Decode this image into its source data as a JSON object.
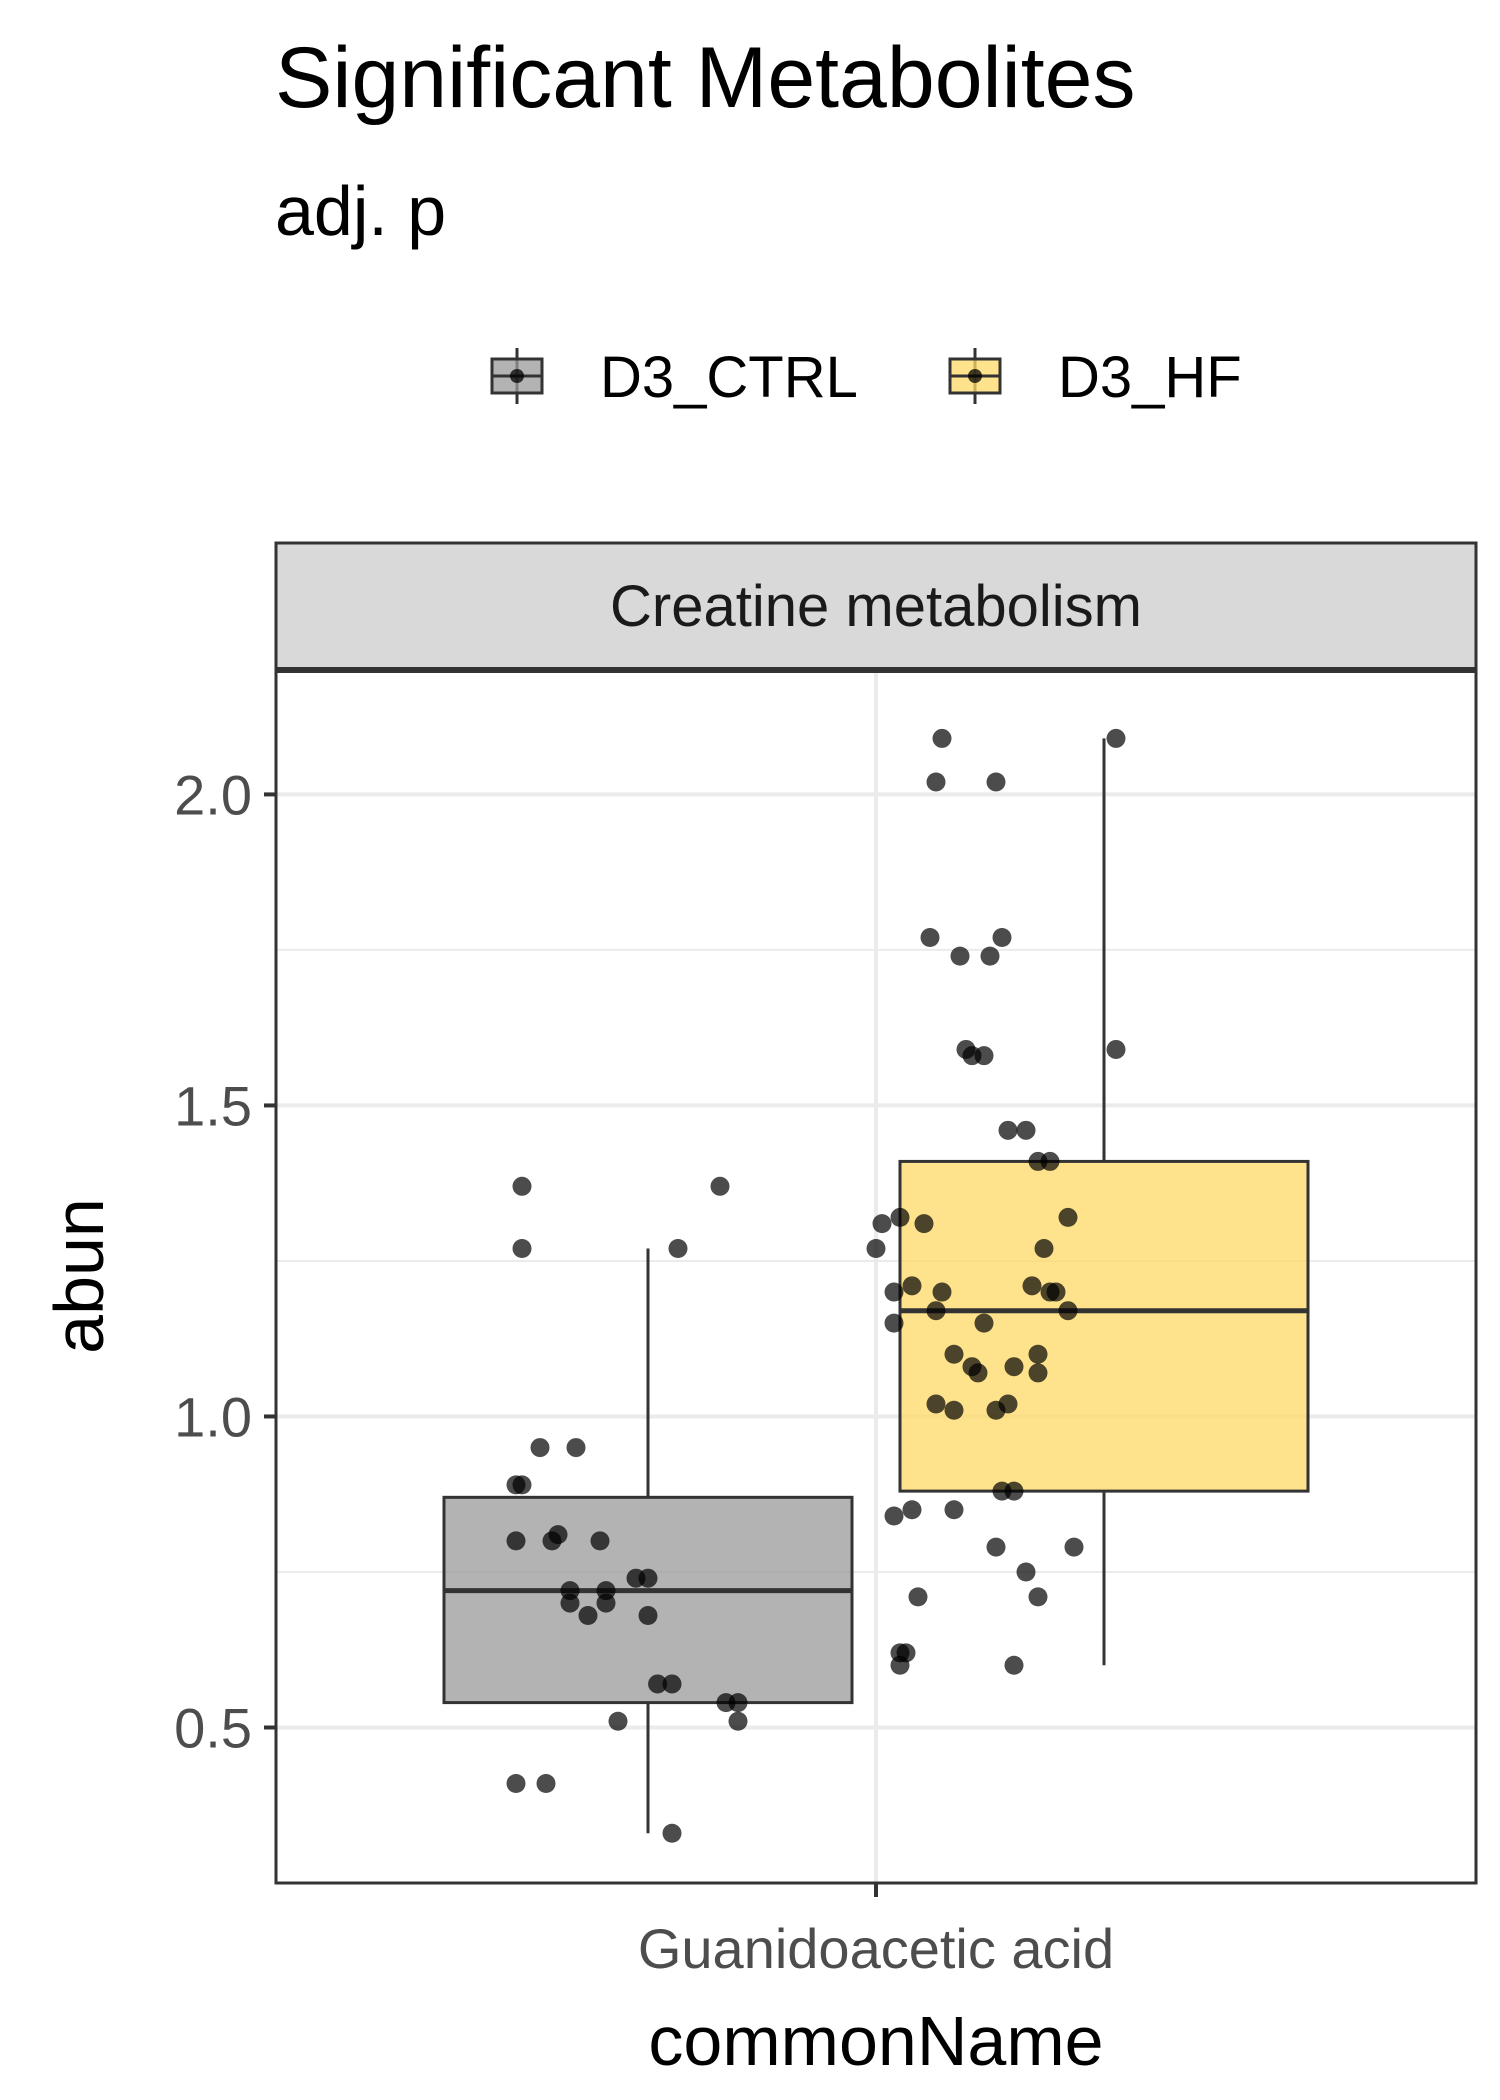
{
  "chart_data": {
    "type": "boxplot",
    "title": "Significant Metabolites",
    "subtitle": "adj. p",
    "xlabel": "commonName",
    "ylabel": "abun",
    "facet": "Creatine metabolism",
    "categories": [
      "Guanidoacetic acid"
    ],
    "legend_position": "top",
    "ylim": [
      0.25,
      2.2
    ],
    "y_ticks": [
      0.5,
      1.0,
      1.5,
      2.0
    ],
    "y_tick_labels": [
      "0.5",
      "1.0",
      "1.5",
      "2.0"
    ],
    "grid": true,
    "series": [
      {
        "name": "D3_CTRL",
        "color": "#999999",
        "box": {
          "whisker_low": 0.33,
          "q1": 0.54,
          "median": 0.72,
          "q3": 0.87,
          "whisker_high": 1.27
        },
        "points": [
          {
            "x": -0.105,
            "y": 1.37
          },
          {
            "x": 0.06,
            "y": 1.37
          },
          {
            "x": -0.105,
            "y": 1.27
          },
          {
            "x": 0.025,
            "y": 1.27
          },
          {
            "x": -0.09,
            "y": 0.95
          },
          {
            "x": -0.06,
            "y": 0.95
          },
          {
            "x": -0.11,
            "y": 0.89
          },
          {
            "x": -0.105,
            "y": 0.89
          },
          {
            "x": -0.11,
            "y": 0.8
          },
          {
            "x": -0.08,
            "y": 0.8
          },
          {
            "x": -0.075,
            "y": 0.81
          },
          {
            "x": -0.04,
            "y": 0.8
          },
          {
            "x": -0.065,
            "y": 0.72
          },
          {
            "x": -0.035,
            "y": 0.72
          },
          {
            "x": -0.01,
            "y": 0.74
          },
          {
            "x": 0.0,
            "y": 0.74
          },
          {
            "x": -0.065,
            "y": 0.7
          },
          {
            "x": -0.035,
            "y": 0.7
          },
          {
            "x": -0.05,
            "y": 0.68
          },
          {
            "x": 0.0,
            "y": 0.68
          },
          {
            "x": 0.008,
            "y": 0.57
          },
          {
            "x": 0.02,
            "y": 0.57
          },
          {
            "x": 0.065,
            "y": 0.54
          },
          {
            "x": 0.075,
            "y": 0.54
          },
          {
            "x": -0.025,
            "y": 0.51
          },
          {
            "x": 0.075,
            "y": 0.51
          },
          {
            "x": -0.11,
            "y": 0.41
          },
          {
            "x": -0.085,
            "y": 0.41
          },
          {
            "x": 0.02,
            "y": 0.33
          }
        ]
      },
      {
        "name": "D3_HF",
        "color": "#FFD966",
        "box": {
          "whisker_low": 0.6,
          "q1": 0.88,
          "median": 1.17,
          "q3": 1.41,
          "whisker_high": 2.09
        },
        "points": [
          {
            "x": -0.135,
            "y": 2.09
          },
          {
            "x": 0.01,
            "y": 2.09
          },
          {
            "x": -0.14,
            "y": 2.02
          },
          {
            "x": -0.09,
            "y": 2.02
          },
          {
            "x": -0.145,
            "y": 1.77
          },
          {
            "x": -0.085,
            "y": 1.77
          },
          {
            "x": -0.12,
            "y": 1.74
          },
          {
            "x": -0.095,
            "y": 1.74
          },
          {
            "x": -0.115,
            "y": 1.59
          },
          {
            "x": -0.11,
            "y": 1.58
          },
          {
            "x": -0.1,
            "y": 1.58
          },
          {
            "x": 0.01,
            "y": 1.59
          },
          {
            "x": -0.08,
            "y": 1.46
          },
          {
            "x": -0.065,
            "y": 1.46
          },
          {
            "x": -0.055,
            "y": 1.41
          },
          {
            "x": -0.045,
            "y": 1.41
          },
          {
            "x": -0.185,
            "y": 1.31
          },
          {
            "x": -0.17,
            "y": 1.32
          },
          {
            "x": -0.15,
            "y": 1.31
          },
          {
            "x": -0.03,
            "y": 1.32
          },
          {
            "x": -0.19,
            "y": 1.27
          },
          {
            "x": -0.05,
            "y": 1.27
          },
          {
            "x": -0.175,
            "y": 1.2
          },
          {
            "x": -0.16,
            "y": 1.21
          },
          {
            "x": -0.135,
            "y": 1.2
          },
          {
            "x": -0.06,
            "y": 1.21
          },
          {
            "x": -0.045,
            "y": 1.2
          },
          {
            "x": -0.04,
            "y": 1.2
          },
          {
            "x": -0.175,
            "y": 1.15
          },
          {
            "x": -0.14,
            "y": 1.17
          },
          {
            "x": -0.1,
            "y": 1.15
          },
          {
            "x": -0.03,
            "y": 1.17
          },
          {
            "x": -0.125,
            "y": 1.1
          },
          {
            "x": -0.11,
            "y": 1.08
          },
          {
            "x": -0.105,
            "y": 1.07
          },
          {
            "x": -0.075,
            "y": 1.08
          },
          {
            "x": -0.055,
            "y": 1.1
          },
          {
            "x": -0.055,
            "y": 1.07
          },
          {
            "x": -0.14,
            "y": 1.02
          },
          {
            "x": -0.125,
            "y": 1.01
          },
          {
            "x": -0.09,
            "y": 1.01
          },
          {
            "x": -0.08,
            "y": 1.02
          },
          {
            "x": -0.085,
            "y": 0.88
          },
          {
            "x": -0.075,
            "y": 0.88
          },
          {
            "x": -0.175,
            "y": 0.84
          },
          {
            "x": -0.16,
            "y": 0.85
          },
          {
            "x": -0.125,
            "y": 0.85
          },
          {
            "x": -0.09,
            "y": 0.79
          },
          {
            "x": -0.025,
            "y": 0.79
          },
          {
            "x": -0.065,
            "y": 0.75
          },
          {
            "x": -0.155,
            "y": 0.71
          },
          {
            "x": -0.055,
            "y": 0.71
          },
          {
            "x": -0.17,
            "y": 0.62
          },
          {
            "x": -0.165,
            "y": 0.62
          },
          {
            "x": -0.17,
            "y": 0.6
          },
          {
            "x": -0.075,
            "y": 0.6
          }
        ]
      }
    ]
  }
}
